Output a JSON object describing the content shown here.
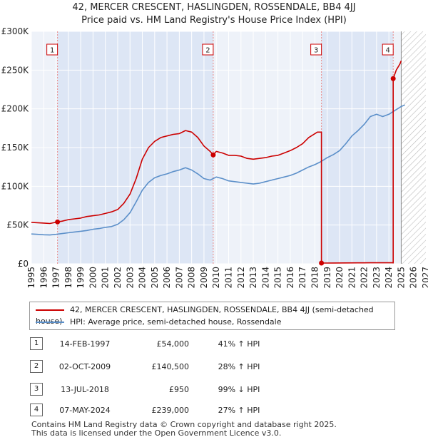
{
  "chart_data": {
    "type": "line",
    "title": "42, MERCER CRESCENT, HASLINGDEN, ROSSENDALE, BB4 4JJ",
    "subtitle": "Price paid vs. HM Land Registry's House Price Index (HPI)",
    "xlabel": "",
    "ylabel": "",
    "xlim": [
      1995,
      2027
    ],
    "ylim": [
      0,
      300000
    ],
    "y_ticks": [
      0,
      50000,
      100000,
      150000,
      200000,
      250000,
      300000
    ],
    "y_tick_labels": [
      "£0",
      "£50K",
      "£100K",
      "£150K",
      "£200K",
      "£250K",
      "£300K"
    ],
    "x_ticks": [
      "1995",
      "1996",
      "1997",
      "1998",
      "1999",
      "2000",
      "2001",
      "2002",
      "2003",
      "2004",
      "2005",
      "2006",
      "2007",
      "2008",
      "2009",
      "2010",
      "2011",
      "2012",
      "2013",
      "2014",
      "2015",
      "2016",
      "2017",
      "2018",
      "2019",
      "2020",
      "2021",
      "2022",
      "2023",
      "2024",
      "2025",
      "2026",
      "2027"
    ],
    "grid": true,
    "forecast_start": 2025.0,
    "colors": {
      "red": "#cc0000",
      "blue": "#5b8fc9",
      "shade": "#dde6f5",
      "grid": "#ffffff",
      "marker_line": "#e88888"
    },
    "series": [
      {
        "name": "42, MERCER CRESCENT, HASLINGDEN, ROSSENDALE, BB4 4JJ (semi-detached house)",
        "color": "#cc0000",
        "points": [
          [
            1995.0,
            53500
          ],
          [
            1995.5,
            53000
          ],
          [
            1996.0,
            52500
          ],
          [
            1996.5,
            52000
          ],
          [
            1997.12,
            54000
          ],
          [
            1997.5,
            55000
          ],
          [
            1998.0,
            57000
          ],
          [
            1998.5,
            58000
          ],
          [
            1999.0,
            59000
          ],
          [
            1999.5,
            61000
          ],
          [
            2000.0,
            62000
          ],
          [
            2000.5,
            63000
          ],
          [
            2001.0,
            65000
          ],
          [
            2001.5,
            67000
          ],
          [
            2002.0,
            70000
          ],
          [
            2002.5,
            78000
          ],
          [
            2003.0,
            90000
          ],
          [
            2003.5,
            110000
          ],
          [
            2004.0,
            135000
          ],
          [
            2004.5,
            150000
          ],
          [
            2005.0,
            158000
          ],
          [
            2005.5,
            163000
          ],
          [
            2006.0,
            165000
          ],
          [
            2006.5,
            167000
          ],
          [
            2007.0,
            168000
          ],
          [
            2007.5,
            172000
          ],
          [
            2008.0,
            170000
          ],
          [
            2008.5,
            163000
          ],
          [
            2009.0,
            152000
          ],
          [
            2009.5,
            145000
          ],
          [
            2009.75,
            140500
          ],
          [
            2010.0,
            145000
          ],
          [
            2010.5,
            143000
          ],
          [
            2011.0,
            140000
          ],
          [
            2011.5,
            140000
          ],
          [
            2012.0,
            139000
          ],
          [
            2012.5,
            136000
          ],
          [
            2013.0,
            135000
          ],
          [
            2013.5,
            136000
          ],
          [
            2014.0,
            137000
          ],
          [
            2014.5,
            139000
          ],
          [
            2015.0,
            140000
          ],
          [
            2015.5,
            143000
          ],
          [
            2016.0,
            146000
          ],
          [
            2016.5,
            150000
          ],
          [
            2017.0,
            155000
          ],
          [
            2017.5,
            163000
          ],
          [
            2018.2,
            170000
          ],
          [
            2018.53,
            170000
          ],
          [
            2018.53,
            950
          ],
          [
            2019.5,
            1020
          ],
          [
            2020.5,
            1100
          ],
          [
            2021.5,
            1200
          ],
          [
            2022.5,
            1300
          ],
          [
            2023.5,
            1320
          ],
          [
            2024.35,
            1330
          ],
          [
            2024.35,
            239000
          ],
          [
            2024.6,
            250000
          ],
          [
            2024.9,
            258000
          ],
          [
            2025.0,
            262000
          ]
        ]
      },
      {
        "name": "HPI: Average price, semi-detached house, Rossendale",
        "color": "#5b8fc9",
        "points": [
          [
            1995.0,
            38500
          ],
          [
            1995.5,
            38000
          ],
          [
            1996.0,
            37500
          ],
          [
            1996.5,
            37200
          ],
          [
            1997.0,
            38000
          ],
          [
            1997.5,
            39000
          ],
          [
            1998.0,
            40000
          ],
          [
            1998.5,
            41000
          ],
          [
            1999.0,
            42000
          ],
          [
            1999.5,
            43000
          ],
          [
            2000.0,
            44500
          ],
          [
            2000.5,
            45500
          ],
          [
            2001.0,
            47000
          ],
          [
            2001.5,
            48000
          ],
          [
            2002.0,
            51000
          ],
          [
            2002.5,
            57000
          ],
          [
            2003.0,
            66000
          ],
          [
            2003.5,
            80000
          ],
          [
            2004.0,
            95000
          ],
          [
            2004.5,
            105000
          ],
          [
            2005.0,
            111000
          ],
          [
            2005.5,
            114000
          ],
          [
            2006.0,
            116000
          ],
          [
            2006.5,
            119000
          ],
          [
            2007.0,
            121000
          ],
          [
            2007.5,
            124000
          ],
          [
            2008.0,
            121000
          ],
          [
            2008.5,
            116000
          ],
          [
            2009.0,
            110000
          ],
          [
            2009.5,
            108000
          ],
          [
            2010.0,
            112000
          ],
          [
            2010.5,
            110000
          ],
          [
            2011.0,
            107000
          ],
          [
            2011.5,
            106000
          ],
          [
            2012.0,
            105000
          ],
          [
            2012.5,
            104000
          ],
          [
            2013.0,
            103000
          ],
          [
            2013.5,
            104000
          ],
          [
            2014.0,
            106000
          ],
          [
            2014.5,
            108000
          ],
          [
            2015.0,
            110000
          ],
          [
            2015.5,
            112000
          ],
          [
            2016.0,
            114000
          ],
          [
            2016.5,
            117000
          ],
          [
            2017.0,
            121000
          ],
          [
            2017.5,
            125000
          ],
          [
            2018.0,
            128000
          ],
          [
            2018.5,
            132000
          ],
          [
            2019.0,
            137000
          ],
          [
            2019.5,
            141000
          ],
          [
            2020.0,
            146000
          ],
          [
            2020.5,
            155000
          ],
          [
            2021.0,
            165000
          ],
          [
            2021.5,
            172000
          ],
          [
            2022.0,
            180000
          ],
          [
            2022.5,
            190000
          ],
          [
            2023.0,
            193000
          ],
          [
            2023.5,
            190000
          ],
          [
            2024.0,
            193000
          ],
          [
            2024.5,
            198000
          ],
          [
            2025.0,
            203000
          ],
          [
            2025.3,
            205000
          ]
        ]
      }
    ],
    "sales": [
      {
        "id": "1",
        "x": 1997.12,
        "price": 54000,
        "date": "14-FEB-1997",
        "price_label": "£54,000",
        "hpi": "41% ↑ HPI"
      },
      {
        "id": "2",
        "x": 2009.75,
        "price": 140500,
        "date": "02-OCT-2009",
        "price_label": "£140,500",
        "hpi": "28% ↑ HPI"
      },
      {
        "id": "3",
        "x": 2018.53,
        "price": 950,
        "date": "13-JUL-2018",
        "price_label": "£950",
        "hpi": "99% ↓ HPI"
      },
      {
        "id": "4",
        "x": 2024.35,
        "price": 239000,
        "date": "07-MAY-2024",
        "price_label": "£239,000",
        "hpi": "27% ↑ HPI"
      }
    ],
    "shaded_spans": [
      [
        1997.12,
        2009.75
      ],
      [
        2018.53,
        2024.35
      ]
    ],
    "legend": [
      "42, MERCER CRESCENT, HASLINGDEN, ROSSENDALE, BB4 4JJ (semi-detached house)",
      "HPI: Average price, semi-detached house, Rossendale"
    ]
  },
  "footer": {
    "line1": "Contains HM Land Registry data © Crown copyright and database right 2025.",
    "line2": "This data is licensed under the Open Government Licence v3.0."
  }
}
